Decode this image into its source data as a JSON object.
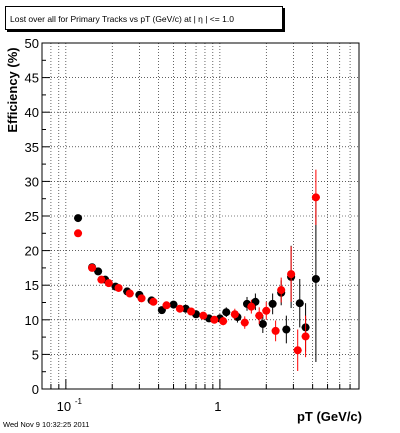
{
  "chart_data": {
    "type": "scatter",
    "title": "Lost over all for Primary Tracks vs pT (GeV/c) at |  η | <= 1.0",
    "xlabel": "pT (GeV/c)",
    "ylabel": "Efficiency (%)",
    "xscale": "log",
    "xlim": [
      0.07,
      8.0
    ],
    "ylim": [
      0,
      50
    ],
    "grid": true,
    "x_tick_labels": [
      {
        "value": 0.1,
        "base": "10",
        "exp": "-1"
      },
      {
        "value": 1,
        "base": "1",
        "exp": ""
      }
    ],
    "y_ticks": [
      0,
      5,
      10,
      15,
      20,
      25,
      30,
      35,
      40,
      45,
      50
    ],
    "colors": {
      "series_black": "#000000",
      "series_red": "#ff0000"
    },
    "series": [
      {
        "color": "#000000",
        "points": [
          {
            "x": 0.12,
            "y": 24.7,
            "ey": 0.3
          },
          {
            "x": 0.148,
            "y": 17.6,
            "ey": 0.3
          },
          {
            "x": 0.162,
            "y": 17.0,
            "ey": 0.3
          },
          {
            "x": 0.18,
            "y": 15.8,
            "ey": 0.3
          },
          {
            "x": 0.21,
            "y": 14.8,
            "ey": 0.3
          },
          {
            "x": 0.25,
            "y": 14.1,
            "ey": 0.3
          },
          {
            "x": 0.3,
            "y": 13.6,
            "ey": 0.3
          },
          {
            "x": 0.36,
            "y": 12.8,
            "ey": 0.3
          },
          {
            "x": 0.42,
            "y": 11.4,
            "ey": 0.3
          },
          {
            "x": 0.5,
            "y": 12.2,
            "ey": 0.4
          },
          {
            "x": 0.6,
            "y": 11.6,
            "ey": 0.4
          },
          {
            "x": 0.7,
            "y": 10.8,
            "ey": 0.4
          },
          {
            "x": 0.85,
            "y": 10.2,
            "ey": 0.5
          },
          {
            "x": 1.0,
            "y": 10.2,
            "ey": 0.6
          },
          {
            "x": 1.1,
            "y": 11.1,
            "ey": 0.7
          },
          {
            "x": 1.3,
            "y": 10.4,
            "ey": 0.8
          },
          {
            "x": 1.5,
            "y": 12.3,
            "ey": 1.0
          },
          {
            "x": 1.7,
            "y": 12.6,
            "ey": 1.2
          },
          {
            "x": 1.9,
            "y": 9.4,
            "ey": 1.3
          },
          {
            "x": 2.2,
            "y": 12.3,
            "ey": 1.5
          },
          {
            "x": 2.5,
            "y": 13.9,
            "ey": 1.8
          },
          {
            "x": 2.7,
            "y": 8.6,
            "ey": 2.0
          },
          {
            "x": 2.9,
            "y": 16.2,
            "ey": 4.5
          },
          {
            "x": 3.3,
            "y": 12.4,
            "ey": 3.5
          },
          {
            "x": 3.6,
            "y": 8.9,
            "ey": 3.5
          },
          {
            "x": 4.2,
            "y": 15.9,
            "ey": 12.0
          }
        ]
      },
      {
        "color": "#ff0000",
        "points": [
          {
            "x": 0.12,
            "y": 22.5,
            "ey": 0.3
          },
          {
            "x": 0.148,
            "y": 17.5,
            "ey": 0.3
          },
          {
            "x": 0.17,
            "y": 15.8,
            "ey": 0.3
          },
          {
            "x": 0.19,
            "y": 15.3,
            "ey": 0.3
          },
          {
            "x": 0.22,
            "y": 14.6,
            "ey": 0.3
          },
          {
            "x": 0.26,
            "y": 13.8,
            "ey": 0.3
          },
          {
            "x": 0.31,
            "y": 13.1,
            "ey": 0.3
          },
          {
            "x": 0.37,
            "y": 12.6,
            "ey": 0.3
          },
          {
            "x": 0.45,
            "y": 12.1,
            "ey": 0.4
          },
          {
            "x": 0.55,
            "y": 11.6,
            "ey": 0.4
          },
          {
            "x": 0.65,
            "y": 11.2,
            "ey": 0.4
          },
          {
            "x": 0.78,
            "y": 10.6,
            "ey": 0.5
          },
          {
            "x": 0.92,
            "y": 10.0,
            "ey": 0.5
          },
          {
            "x": 1.05,
            "y": 9.8,
            "ey": 0.6
          },
          {
            "x": 1.25,
            "y": 10.8,
            "ey": 0.8
          },
          {
            "x": 1.45,
            "y": 9.6,
            "ey": 0.9
          },
          {
            "x": 1.6,
            "y": 11.9,
            "ey": 1.0
          },
          {
            "x": 1.8,
            "y": 10.6,
            "ey": 1.2
          },
          {
            "x": 2.0,
            "y": 11.3,
            "ey": 1.3
          },
          {
            "x": 2.3,
            "y": 8.4,
            "ey": 1.5
          },
          {
            "x": 2.5,
            "y": 14.3,
            "ey": 1.8
          },
          {
            "x": 2.9,
            "y": 16.6,
            "ey": 4.0
          },
          {
            "x": 3.2,
            "y": 5.6,
            "ey": 3.0
          },
          {
            "x": 3.6,
            "y": 7.6,
            "ey": 3.0
          },
          {
            "x": 4.2,
            "y": 27.7,
            "ey": 4.0
          }
        ]
      }
    ]
  },
  "footer": {
    "timestamp": "Wed Nov  9 10:32:25 2011"
  }
}
